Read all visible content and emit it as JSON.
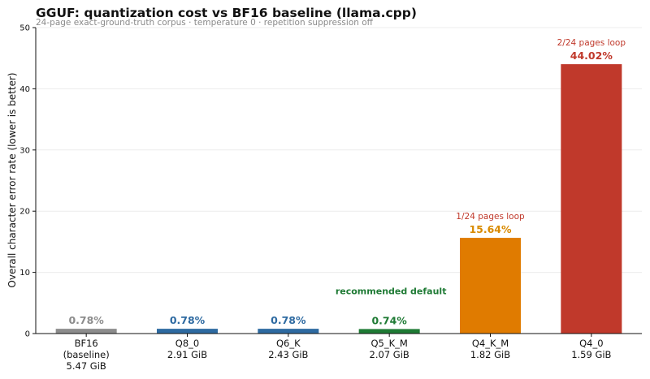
{
  "chart_data": {
    "type": "bar",
    "title": "GGUF: quantization cost vs BF16 baseline (llama.cpp)",
    "subtitle": "24-page exact-ground-truth corpus · temperature 0 · repetition suppression off",
    "ylabel": "Overall character error rate (lower is better)",
    "xlabel": "",
    "ylim": [
      0,
      50
    ],
    "yticks": [
      0,
      10,
      20,
      30,
      40,
      50
    ],
    "grid": "horizontal",
    "categories": [
      [
        "BF16",
        "(baseline)",
        "5.47 GiB"
      ],
      [
        "Q8_0",
        "2.91 GiB"
      ],
      [
        "Q6_K",
        "2.43 GiB"
      ],
      [
        "Q5_K_M",
        "2.07 GiB"
      ],
      [
        "Q4_K_M",
        "1.82 GiB"
      ],
      [
        "Q4_0",
        "1.59 GiB"
      ]
    ],
    "values": [
      0.78,
      0.78,
      0.78,
      0.74,
      15.64,
      44.02
    ],
    "value_labels": [
      "0.78%",
      "0.78%",
      "0.78%",
      "0.74%",
      "15.64%",
      "44.02%"
    ],
    "colors": [
      "#8c8c8c",
      "#2e6aa1",
      "#2e6aa1",
      "#1e7a34",
      "#e07b00",
      "#c0392b"
    ],
    "label_colors": [
      "#8c8c8c",
      "#2e6aa1",
      "#2e6aa1",
      "#1e7a34",
      "#d98a00",
      "#c0392b"
    ],
    "annotations": [
      {
        "bar": 3,
        "text": "recommended default",
        "color": "#1e7a34"
      },
      {
        "bar": 4,
        "text": "1/24 pages loop",
        "color": "#c0392b"
      },
      {
        "bar": 5,
        "text": "2/24 pages loop",
        "color": "#c0392b"
      }
    ]
  }
}
